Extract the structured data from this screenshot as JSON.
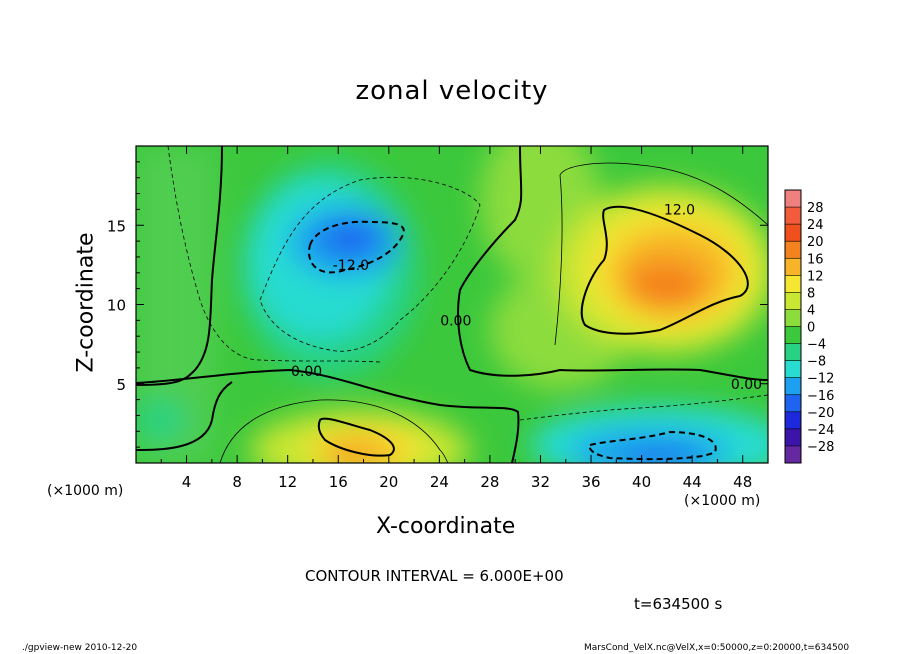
{
  "chart_data": {
    "type": "heatmap",
    "title": "zonal velocity",
    "xlabel": "X-coordinate",
    "ylabel": "Z-coordinate",
    "x_unit_label": "(×1000 m)",
    "xlim": [
      0,
      50
    ],
    "ylim": [
      0,
      20
    ],
    "x_ticks": [
      4,
      8,
      12,
      16,
      20,
      24,
      28,
      32,
      36,
      40,
      44,
      48
    ],
    "y_ticks": [
      5,
      10,
      15
    ],
    "colorbar": {
      "levels": [
        28,
        24,
        20,
        16,
        12,
        8,
        4,
        0,
        -4,
        -8,
        -12,
        -16,
        -20,
        -24,
        -28
      ],
      "colors": [
        "#f08080",
        "#f25c3c",
        "#f0501e",
        "#f4821e",
        "#f8b428",
        "#f5e632",
        "#c8e632",
        "#8cdc3c",
        "#3cc83c",
        "#28d282",
        "#28dcd2",
        "#1ea0f0",
        "#1e64f0",
        "#1e28dc",
        "#3c14aa",
        "#6428a0"
      ]
    },
    "contour_labels": [
      {
        "text": "12.0",
        "x": 43,
        "y": 16.0
      },
      {
        "text": "-12.0",
        "x": 17,
        "y": 12.5
      },
      {
        "text": "0.00",
        "x": 13.5,
        "y": 5.8
      },
      {
        "text": "0.00",
        "x": 25.3,
        "y": 9.0
      },
      {
        "text": "0.00",
        "x": 48.3,
        "y": 5.0
      }
    ],
    "annotations": {
      "contour_interval": "CONTOUR INTERVAL = 6.000E+00",
      "time": "t=634500 s",
      "footer_left": "./gpview-new  2010-12-20",
      "footer_right": "MarsCond_VelX.nc@VelX,x=0:50000,z=0:20000,t=634500"
    }
  }
}
